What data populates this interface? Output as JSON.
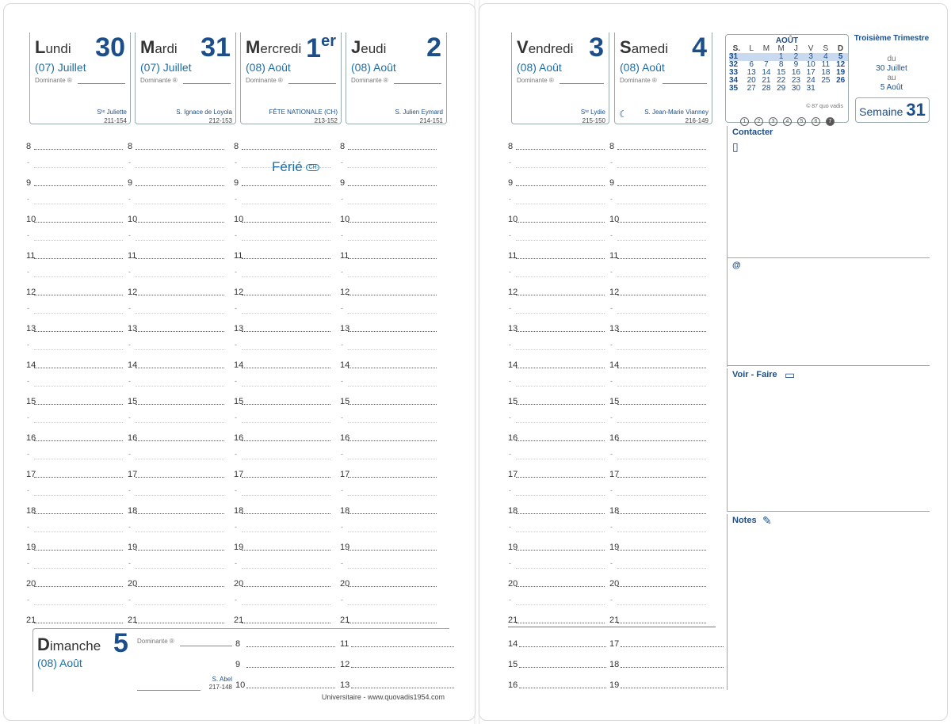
{
  "left_days": [
    {
      "name_first": "L",
      "name_rest": "undi",
      "num": "30",
      "sup": "",
      "month": "(07) Juillet",
      "dominante": "Dominante ®",
      "saint": "Sᵗᵉ Juliette",
      "code": "211-154"
    },
    {
      "name_first": "M",
      "name_rest": "ardi",
      "num": "31",
      "sup": "",
      "month": "(07) Juillet",
      "dominante": "Dominante ®",
      "saint": "S. Ignace de Loyola",
      "code": "212-153"
    },
    {
      "name_first": "M",
      "name_rest": "ercredi",
      "num": "1",
      "sup": "er",
      "month": "(08) Août",
      "dominante": "Dominante ®",
      "saint": "FÊTE NATIONALE (CH)",
      "code": "213-152"
    },
    {
      "name_first": "J",
      "name_rest": "eudi",
      "num": "2",
      "sup": "",
      "month": "(08) Août",
      "dominante": "Dominante ®",
      "saint": "S. Julien Eymard",
      "code": "214-151"
    }
  ],
  "right_days": [
    {
      "name_first": "V",
      "name_rest": "endredi",
      "num": "3",
      "sup": "",
      "month": "(08) Août",
      "dominante": "Dominante ®",
      "saint": "Sᵗᵉ Lydie",
      "code": "215-150"
    },
    {
      "name_first": "S",
      "name_rest": "amedi",
      "num": "4",
      "sup": "",
      "month": "(08) Août",
      "dominante": "Dominante ®",
      "saint": "S. Jean-Marie Vianney",
      "code": "216-149"
    }
  ],
  "hours": [
    "8",
    "9",
    "10",
    "11",
    "12",
    "13",
    "14",
    "15",
    "16",
    "17",
    "18",
    "19",
    "20",
    "21"
  ],
  "half_mark": "-",
  "ferie": {
    "text": "Férié",
    "badge": "CH"
  },
  "sunday": {
    "name_first": "D",
    "name_rest": "imanche",
    "num": "5",
    "month": "(08) Août",
    "dominante": "Dominante ®",
    "saint": "S. Abel",
    "code": "217-148",
    "col1": [
      "8",
      "9",
      "10"
    ],
    "col2": [
      "11",
      "12",
      "13"
    ]
  },
  "saturday_extra": {
    "col1": [
      "14",
      "15",
      "16"
    ],
    "col2": [
      "17",
      "18",
      "19"
    ]
  },
  "footer": "Universitaire - www.quovadis1954.com",
  "mini_calendar": {
    "title": "AOÛT",
    "headers": [
      "S.",
      "L",
      "M",
      "M",
      "J",
      "V",
      "S",
      "D"
    ],
    "rows": [
      [
        "31",
        "",
        "",
        "1",
        "2",
        "3",
        "4",
        "5"
      ],
      [
        "32",
        "6",
        "7",
        "8",
        "9",
        "10",
        "11",
        "12"
      ],
      [
        "33",
        "13",
        "14",
        "15",
        "16",
        "17",
        "18",
        "19"
      ],
      [
        "34",
        "20",
        "21",
        "22",
        "23",
        "24",
        "25",
        "26"
      ],
      [
        "35",
        "27",
        "28",
        "29",
        "30",
        "31",
        "",
        ""
      ]
    ],
    "copyright": "© 87 quo vadis",
    "circles": [
      "1",
      "2",
      "3",
      "4",
      "5",
      "6",
      "7"
    ]
  },
  "trimester": {
    "title": "Troisième Trimestre",
    "du": "du",
    "from": "30 Juillet",
    "au": "au",
    "to": "5 Août"
  },
  "week": {
    "label": "Semaine",
    "num": "31"
  },
  "sections": {
    "contacter": "Contacter",
    "email": "@",
    "voir_faire": "Voir - Faire",
    "notes": "Notes"
  },
  "colors": {
    "accent": "#1c4f8a",
    "light_accent": "#1c6fa8"
  }
}
